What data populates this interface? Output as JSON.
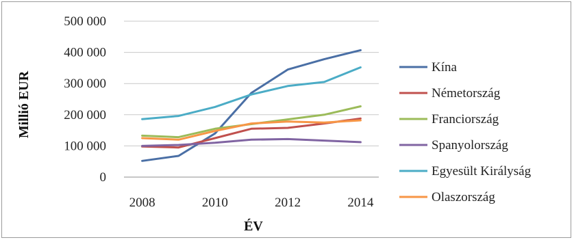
{
  "chart_data": {
    "type": "line",
    "title": "",
    "xlabel": "ÉV",
    "ylabel": "Millió EUR",
    "x": [
      2008,
      2009,
      2010,
      2011,
      2012,
      2013,
      2014
    ],
    "x_ticks": [
      "2008",
      "2010",
      "2012",
      "2014"
    ],
    "x_tick_values": [
      2008,
      2010,
      2012,
      2014
    ],
    "y_ticks": [
      "0",
      "100 000",
      "200 000",
      "300 000",
      "400 000",
      "500 000"
    ],
    "y_tick_values": [
      0,
      100000,
      200000,
      300000,
      400000,
      500000
    ],
    "ylim": [
      0,
      500000
    ],
    "xlim": [
      2007.5,
      2014.5
    ],
    "grid": "horizontal",
    "legend_position": "right",
    "series": [
      {
        "name": "Kína",
        "color": "#4a6fa5",
        "values": [
          52000,
          68000,
          140000,
          270000,
          345000,
          378000,
          407000
        ]
      },
      {
        "name": "Németország",
        "color": "#c0504d",
        "values": [
          98000,
          95000,
          125000,
          155000,
          158000,
          172000,
          188000
        ]
      },
      {
        "name": "Franciország",
        "color": "#9bbb59",
        "values": [
          133000,
          128000,
          155000,
          170000,
          185000,
          200000,
          227000
        ]
      },
      {
        "name": "Spanyolország",
        "color": "#8064a2",
        "values": [
          100000,
          103000,
          110000,
          120000,
          122000,
          117000,
          112000
        ]
      },
      {
        "name": "Egyesült Királyság",
        "color": "#4bacc6",
        "values": [
          186000,
          196000,
          225000,
          265000,
          292000,
          305000,
          352000
        ]
      },
      {
        "name": "Olaszország",
        "color": "#f79646",
        "values": [
          125000,
          120000,
          148000,
          172000,
          178000,
          175000,
          182000
        ]
      }
    ]
  }
}
